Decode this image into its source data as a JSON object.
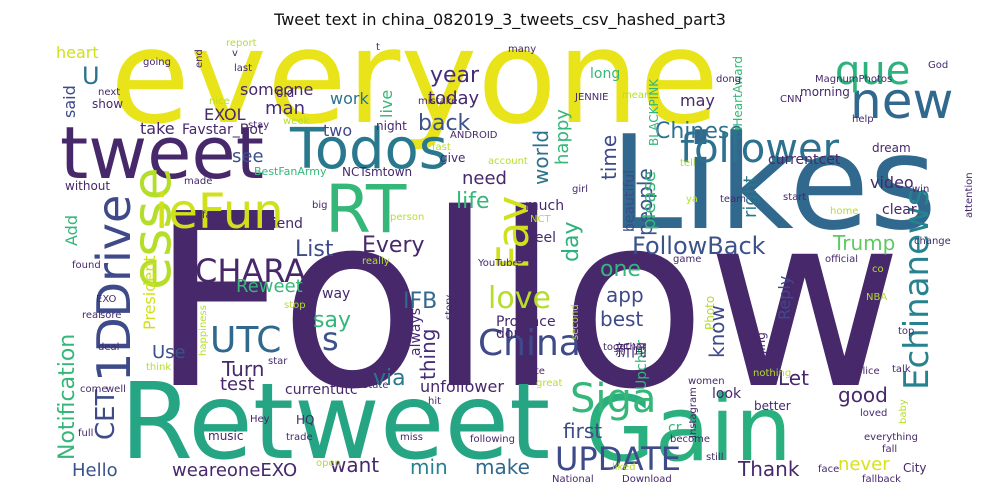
{
  "title": "Tweet text in china_082019_3_tweets_csv_hashed_part3",
  "palette": {
    "dark_purple": "#46286b",
    "purple": "#48307c",
    "blue": "#31688e",
    "teal": "#26828e",
    "green": "#35b779",
    "light_green": "#6ece58",
    "yellow_green": "#b5de2b",
    "yellow": "#e8e419",
    "lime": "#d8e219"
  },
  "words": [
    {
      "text": "Follow",
      "color": "#46286b"
    },
    {
      "text": "everyone",
      "color": "#e8e419"
    },
    {
      "text": "Likes",
      "color": "#31688e"
    },
    {
      "text": "Retweet",
      "color": "#25a584"
    },
    {
      "text": "Gain",
      "color": "#2ab07f"
    },
    {
      "text": "tweet",
      "color": "#46286b"
    },
    {
      "text": "Todos",
      "color": "#2a788e"
    },
    {
      "text": "RT",
      "color": "#35b779"
    },
    {
      "text": "follower",
      "color": "#2c728e"
    },
    {
      "text": "new",
      "color": "#31688e"
    },
    {
      "text": "que",
      "color": "#2db27d"
    },
    {
      "text": "esse",
      "color": "#b5de2b"
    },
    {
      "text": "ieFun",
      "color": "#d0e11c"
    },
    {
      "text": "Fav",
      "color": "#d0e11c"
    },
    {
      "text": "1DDrive",
      "color": "#3e4a89"
    },
    {
      "text": "Siga",
      "color": "#35b779"
    },
    {
      "text": "UPDATE",
      "color": "#3e4a89"
    },
    {
      "text": "Echinanews",
      "color": "#26828e"
    },
    {
      "text": "CHARA",
      "color": "#46286b"
    },
    {
      "text": "UTC",
      "color": "#31688e"
    },
    {
      "text": "China",
      "color": "#3e4a89"
    },
    {
      "text": "FollowBack",
      "color": "#3b528b"
    },
    {
      "text": "love",
      "color": "#b5de2b"
    },
    {
      "text": "CET",
      "color": "#3e4a89"
    },
    {
      "text": "Notification",
      "color": "#35b779"
    },
    {
      "text": "Chinese",
      "color": "#2c728e"
    },
    {
      "text": "year",
      "color": "#472c7a"
    },
    {
      "text": "back",
      "color": "#3b528b"
    },
    {
      "text": "life",
      "color": "#35b779"
    },
    {
      "text": "Every",
      "color": "#46286b"
    },
    {
      "text": "List",
      "color": "#3e4a89"
    },
    {
      "text": "IFB",
      "color": "#31688e"
    },
    {
      "text": "Trump",
      "color": "#5ec962"
    },
    {
      "text": "Reweet",
      "color": "#35b779"
    },
    {
      "text": "want",
      "color": "#46286b"
    },
    {
      "text": "min",
      "color": "#26828e"
    },
    {
      "text": "make",
      "color": "#31688e"
    },
    {
      "text": "Thank",
      "color": "#46286b"
    },
    {
      "text": "never",
      "color": "#d8e219"
    },
    {
      "text": "good",
      "color": "#46286b"
    },
    {
      "text": "first",
      "color": "#3e4a89"
    },
    {
      "text": "Let",
      "color": "#46286b"
    },
    {
      "text": "Hello",
      "color": "#3b528b"
    },
    {
      "text": "weareoneEXO",
      "color": "#46286b"
    },
    {
      "text": "Turn",
      "color": "#46286b"
    },
    {
      "text": "test",
      "color": "#46286b"
    },
    {
      "text": "Use",
      "color": "#3b528b"
    },
    {
      "text": "s",
      "color": "#3b528b"
    },
    {
      "text": "say",
      "color": "#35b779"
    },
    {
      "text": "via",
      "color": "#2a788e"
    },
    {
      "text": "thing",
      "color": "#472c7a"
    },
    {
      "text": "one",
      "color": "#35b779"
    },
    {
      "text": "app",
      "color": "#3e4a89"
    },
    {
      "text": "best",
      "color": "#3e4a89"
    },
    {
      "text": "know",
      "color": "#3e4a89"
    },
    {
      "text": "heart",
      "color": "#d0e11c"
    },
    {
      "text": "U",
      "color": "#2c728e"
    },
    {
      "text": "said",
      "color": "#3e4a89"
    },
    {
      "text": "man",
      "color": "#472c7a"
    },
    {
      "text": "someone",
      "color": "#46286b"
    },
    {
      "text": "work",
      "color": "#2c728e"
    },
    {
      "text": "today",
      "color": "#46286b"
    },
    {
      "text": "live",
      "color": "#35b779"
    },
    {
      "text": "two",
      "color": "#3e4a89"
    },
    {
      "text": "see",
      "color": "#3b528b"
    },
    {
      "text": "take",
      "color": "#46286b"
    },
    {
      "text": "Favstar_Bot",
      "color": "#46286b"
    },
    {
      "text": "EXOL",
      "color": "#46286b"
    },
    {
      "text": "need",
      "color": "#46286b"
    },
    {
      "text": "world",
      "color": "#2c728e"
    },
    {
      "text": "happy",
      "color": "#35b779"
    },
    {
      "text": "time",
      "color": "#3e4a89"
    },
    {
      "text": "people",
      "color": "#3b528b"
    },
    {
      "text": "please",
      "color": "#35b779"
    },
    {
      "text": "right",
      "color": "#2a788e"
    },
    {
      "text": "currentcet",
      "color": "#46286b"
    },
    {
      "text": "video",
      "color": "#46286b"
    },
    {
      "text": "Reply",
      "color": "#3e4a89"
    },
    {
      "text": "may",
      "color": "#46286b"
    },
    {
      "text": "morning",
      "color": "#46286b"
    },
    {
      "text": "dream",
      "color": "#46286b"
    },
    {
      "text": "day",
      "color": "#2db27d"
    },
    {
      "text": "go",
      "color": "#46286b"
    },
    {
      "text": "much",
      "color": "#46286b"
    },
    {
      "text": "beautiful",
      "color": "#3e4a89"
    },
    {
      "text": "Add",
      "color": "#35b779"
    },
    {
      "text": "President",
      "color": "#d0e11c"
    },
    {
      "text": "friend",
      "color": "#46286b"
    },
    {
      "text": "way",
      "color": "#46286b"
    },
    {
      "text": "always",
      "color": "#472c7a"
    },
    {
      "text": "done",
      "color": "#46286b"
    },
    {
      "text": "Province",
      "color": "#46286b"
    },
    {
      "text": "unfollower",
      "color": "#46286b"
    },
    {
      "text": "currentutc",
      "color": "#46286b"
    },
    {
      "text": "look",
      "color": "#46286b"
    },
    {
      "text": "HQ",
      "color": "#46286b"
    },
    {
      "text": "music",
      "color": "#46286b"
    },
    {
      "text": "Upchar",
      "color": "#35b779"
    },
    {
      "text": "Beijing",
      "color": "#46286b"
    },
    {
      "text": "City",
      "color": "#46286b"
    },
    {
      "text": "NCTsmtown",
      "color": "#46286b"
    },
    {
      "text": "BestFanArmy",
      "color": "#35b779"
    },
    {
      "text": "BLACKPINK",
      "color": "#35b779"
    },
    {
      "text": "JENNIE",
      "color": "#46286b"
    },
    {
      "text": "iHeartAward",
      "color": "#35b779"
    },
    {
      "text": "MagnumPhotos",
      "color": "#46286b"
    },
    {
      "text": "CNN",
      "color": "#46286b"
    },
    {
      "text": "God",
      "color": "#46286b"
    },
    {
      "text": "long",
      "color": "#35b779"
    },
    {
      "text": "dong",
      "color": "#46286b"
    },
    {
      "text": "night",
      "color": "#46286b"
    },
    {
      "text": "show",
      "color": "#46286b"
    },
    {
      "text": "old",
      "color": "#46286b"
    },
    {
      "text": "report",
      "color": "#b5de2b"
    },
    {
      "text": "going",
      "color": "#46286b"
    },
    {
      "text": "next",
      "color": "#46286b"
    },
    {
      "text": "last",
      "color": "#46286b"
    },
    {
      "text": "many",
      "color": "#46286b"
    },
    {
      "text": "mistake",
      "color": "#46286b"
    },
    {
      "text": "mean",
      "color": "#b5de2b"
    },
    {
      "text": "nice",
      "color": "#b5de2b"
    },
    {
      "text": "stay",
      "color": "#46286b"
    },
    {
      "text": "week",
      "color": "#b5de2b"
    },
    {
      "text": "ANDROID",
      "color": "#46286b"
    },
    {
      "text": "give",
      "color": "#46286b"
    },
    {
      "text": "account",
      "color": "#b5de2b"
    },
    {
      "text": "without",
      "color": "#46286b"
    },
    {
      "text": "made",
      "color": "#46286b"
    },
    {
      "text": "fast",
      "color": "#b5de2b"
    },
    {
      "text": "big",
      "color": "#46286b"
    },
    {
      "text": "person",
      "color": "#b5de2b"
    },
    {
      "text": "girl",
      "color": "#46286b"
    },
    {
      "text": "NCT",
      "color": "#b5de2b"
    },
    {
      "text": "tell",
      "color": "#b5de2b"
    },
    {
      "text": "team",
      "color": "#46286b"
    },
    {
      "text": "start",
      "color": "#46286b"
    },
    {
      "text": "win",
      "color": "#46286b"
    },
    {
      "text": "clear",
      "color": "#46286b"
    },
    {
      "text": "home",
      "color": "#b5de2b"
    },
    {
      "text": "attention",
      "color": "#46286b"
    },
    {
      "text": "change",
      "color": "#46286b"
    },
    {
      "text": "help",
      "color": "#46286b"
    },
    {
      "text": "feel",
      "color": "#46286b"
    },
    {
      "text": "fan",
      "color": "#46286b"
    },
    {
      "text": "ya",
      "color": "#b5de2b"
    },
    {
      "text": "found",
      "color": "#46286b"
    },
    {
      "text": "really",
      "color": "#b5de2b"
    },
    {
      "text": "YouTube",
      "color": "#46286b"
    },
    {
      "text": "game",
      "color": "#46286b"
    },
    {
      "text": "find",
      "color": "#46286b"
    },
    {
      "text": "official",
      "color": "#46286b"
    },
    {
      "text": "co",
      "color": "#b5de2b"
    },
    {
      "text": "NBA",
      "color": "#b5de2b"
    },
    {
      "text": "EXO",
      "color": "#46286b"
    },
    {
      "text": "stop",
      "color": "#b5de2b"
    },
    {
      "text": "story",
      "color": "#46286b"
    },
    {
      "text": "second",
      "color": "#b5de2b"
    },
    {
      "text": "real",
      "color": "#46286b"
    },
    {
      "text": "sore",
      "color": "#46286b"
    },
    {
      "text": "deal",
      "color": "#46286b"
    },
    {
      "text": "together",
      "color": "#46286b"
    },
    {
      "text": "Photo",
      "color": "#b5de2b"
    },
    {
      "text": "top",
      "color": "#46286b"
    },
    {
      "text": "star",
      "color": "#46286b"
    },
    {
      "text": "nothing",
      "color": "#b5de2b"
    },
    {
      "text": "talk",
      "color": "#46286b"
    },
    {
      "text": "police",
      "color": "#46286b"
    },
    {
      "text": "happiness",
      "color": "#b5de2b"
    },
    {
      "text": "think",
      "color": "#b5de2b"
    },
    {
      "text": "come",
      "color": "#46286b"
    },
    {
      "text": "well",
      "color": "#46286b"
    },
    {
      "text": "State",
      "color": "#46286b"
    },
    {
      "text": "cute",
      "color": "#46286b"
    },
    {
      "text": "great",
      "color": "#b5de2b"
    },
    {
      "text": "women",
      "color": "#46286b"
    },
    {
      "text": "better",
      "color": "#46286b"
    },
    {
      "text": "loved",
      "color": "#46286b"
    },
    {
      "text": "baby",
      "color": "#b5de2b"
    },
    {
      "text": "hit",
      "color": "#46286b"
    },
    {
      "text": "Hey",
      "color": "#46286b"
    },
    {
      "text": "full",
      "color": "#46286b"
    },
    {
      "text": "trade",
      "color": "#46286b"
    },
    {
      "text": "miss",
      "color": "#46286b"
    },
    {
      "text": "following",
      "color": "#46286b"
    },
    {
      "text": "become",
      "color": "#46286b"
    },
    {
      "text": "Instagram",
      "color": "#46286b"
    },
    {
      "text": "everything",
      "color": "#46286b"
    },
    {
      "text": "fall",
      "color": "#46286b"
    },
    {
      "text": "face",
      "color": "#46286b"
    },
    {
      "text": "fallback",
      "color": "#46286b"
    },
    {
      "text": "still",
      "color": "#46286b"
    },
    {
      "text": "Download",
      "color": "#46286b"
    },
    {
      "text": "liked",
      "color": "#b5de2b"
    },
    {
      "text": "National",
      "color": "#46286b"
    },
    {
      "text": "open",
      "color": "#b5de2b"
    },
    {
      "text": "cr",
      "color": "#35b779"
    },
    {
      "text": "end",
      "color": "#46286b"
    },
    {
      "text": "v",
      "color": "#46286b"
    },
    {
      "text": "t",
      "color": "#46286b"
    },
    {
      "text": "新闻",
      "color": "#46286b"
    }
  ]
}
